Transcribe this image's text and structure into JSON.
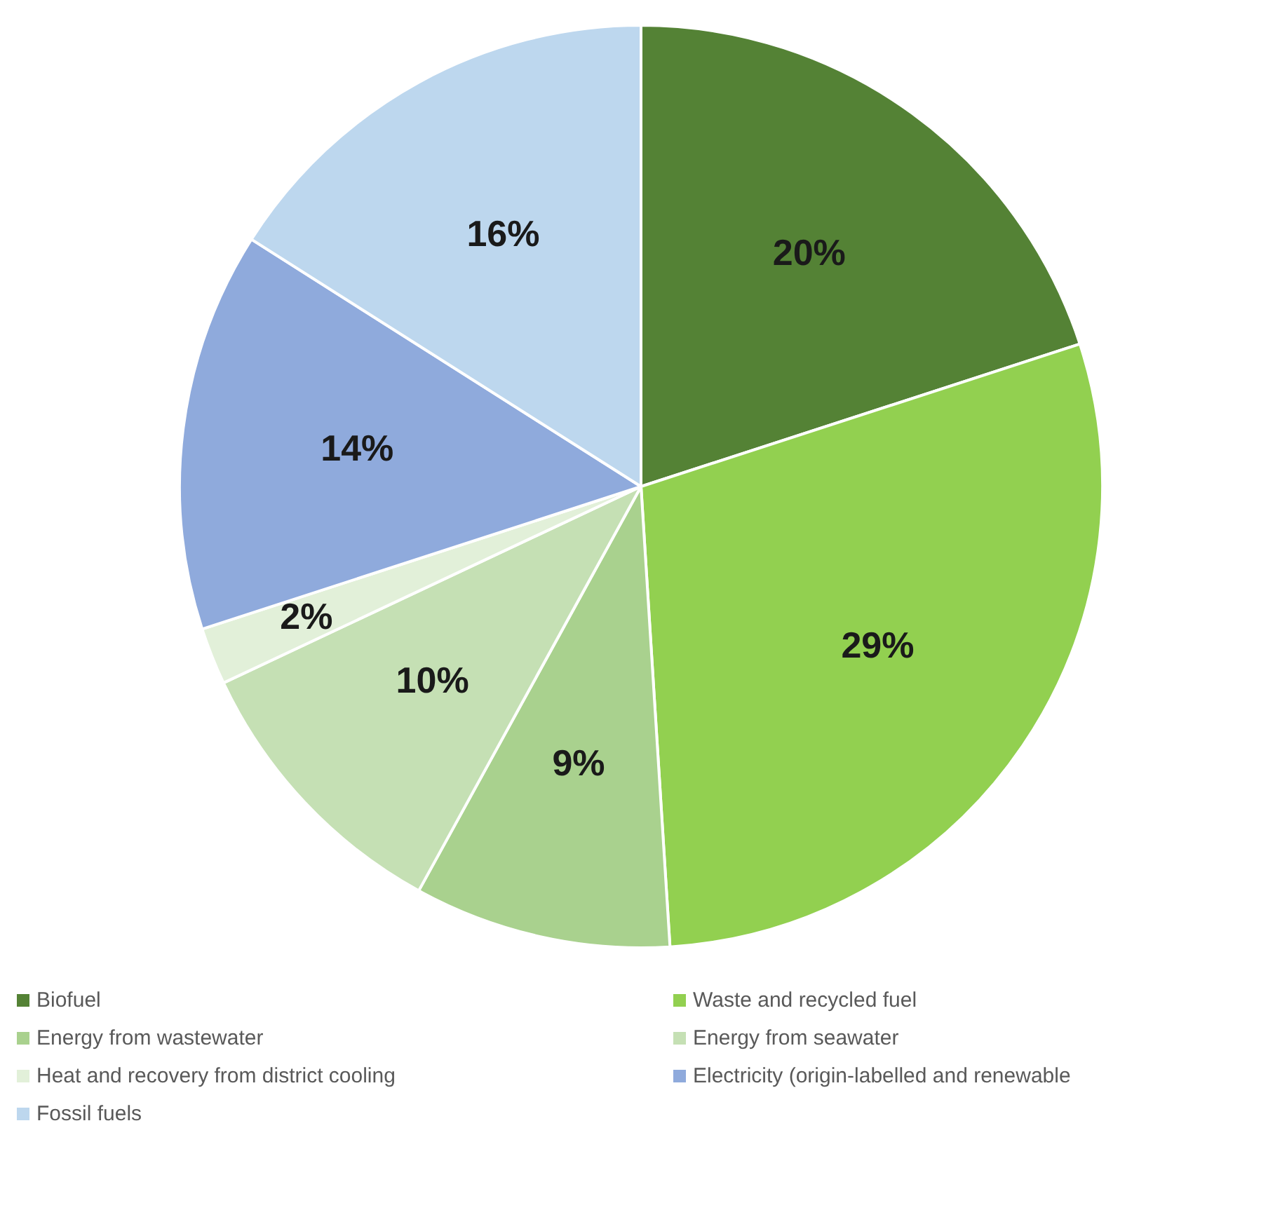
{
  "chart_data": {
    "type": "pie",
    "categories": [
      "Biofuel",
      "Waste and recycled fuel",
      "Energy from wastewater",
      "Energy from seawater",
      "Heat and recovery from district cooling",
      "Electricity (origin-labelled and renewable",
      "Fossil fuels"
    ],
    "values": [
      20,
      29,
      9,
      10,
      2,
      14,
      16
    ],
    "colors": [
      "#548235",
      "#92d050",
      "#a9d18e",
      "#c5e0b4",
      "#e2f0d9",
      "#8faadc",
      "#bdd7ee"
    ],
    "value_labels": [
      "20%",
      "29%",
      "9%",
      "10%",
      "2%",
      "14%",
      "16%"
    ],
    "legend": "bottom"
  }
}
